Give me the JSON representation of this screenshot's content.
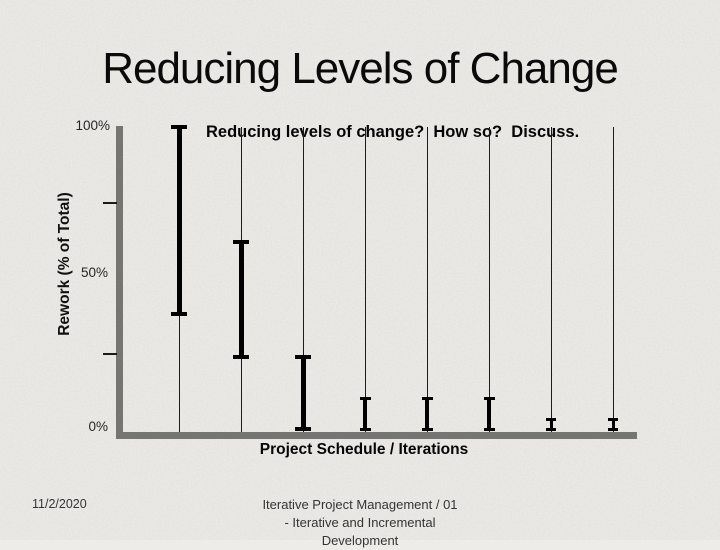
{
  "slide": {
    "title": "Reducing Levels of Change",
    "footer": {
      "date": "11/2/2020",
      "center_lines": [
        "Iterative Project Management / 01",
        "- Iterative and Incremental",
        "Development"
      ]
    }
  },
  "chart_data": {
    "type": "bar",
    "subtype": "high-low range bars (error-bar style) with vertical drop lines per iteration",
    "annotation": "Reducing levels of change?  How so?  Discuss.",
    "xlabel": "Project Schedule / Iterations",
    "ylabel": "Rework (% of Total)",
    "ylim": [
      0,
      100
    ],
    "ytick_labels": {
      "top": "100%",
      "mid": "50%",
      "bottom": "0%"
    },
    "minor_ytick_percents": [
      75,
      25
    ],
    "x": [
      1,
      2,
      3,
      4,
      5,
      6,
      7,
      8
    ],
    "series": [
      {
        "name": "rework-range-high",
        "values": [
          100,
          62,
          24,
          10,
          10,
          10,
          3,
          3
        ]
      },
      {
        "name": "rework-range-low",
        "values": [
          38,
          24,
          0,
          0,
          0,
          0,
          0,
          0
        ]
      }
    ],
    "grid": "vertical drop line at each x position from plot top to x-axis",
    "legend": "none",
    "colors": {
      "bars": "#000000",
      "axes": "#757571",
      "background": "#edece8",
      "text": "#000000"
    }
  }
}
